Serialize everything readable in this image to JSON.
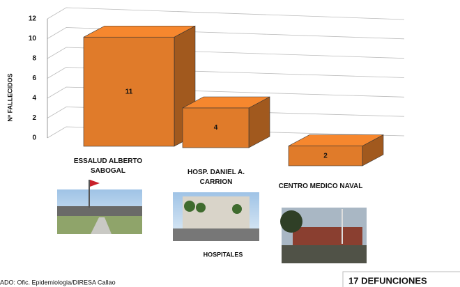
{
  "chart_data": {
    "type": "bar3d",
    "categories": [
      "ESSALUD ALBERTO SABOGAL",
      "HOSP. DANIEL A. CARRION",
      "CENTRO MEDICO NAVAL"
    ],
    "values": [
      11,
      4,
      2
    ],
    "color": "#e07b2a",
    "ylim": [
      0,
      12
    ],
    "yticks": [
      0,
      2,
      4,
      6,
      8,
      10,
      12
    ],
    "grid": true,
    "y_label": "Nº FALLECIDOS",
    "x_label": "HOSPITALES",
    "source": "ADO: Ofic. Epidemiologia/DIRESA Callao",
    "total_note": "17 DEFUNCIONES"
  }
}
